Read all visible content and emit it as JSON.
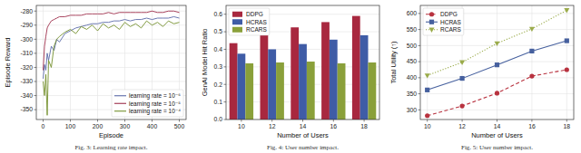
{
  "chart_data": [
    {
      "type": "line",
      "x_label": "Episode",
      "y_label": "Episode Reward",
      "annotations": [
        "Fig. 3: Learning rate impact."
      ],
      "x": [
        0,
        5,
        10,
        15,
        20,
        30,
        40,
        50,
        60,
        80,
        100,
        120,
        140,
        160,
        180,
        200,
        220,
        240,
        260,
        280,
        300,
        320,
        340,
        360,
        380,
        400,
        420,
        440,
        460,
        480,
        500
      ],
      "series": [
        {
          "name": "learning rate = 10⁻⁶",
          "color": "#5a6aa8",
          "line_style": "solid",
          "values": [
            -328,
            -318,
            -322,
            -310,
            -315,
            -305,
            -308,
            -300,
            -302,
            -296,
            -294,
            -292,
            -291,
            -290,
            -289,
            -289,
            -288,
            -288,
            -287,
            -287,
            -286,
            -287,
            -286,
            -286,
            -285,
            -286,
            -285,
            -285,
            -285,
            -284,
            -285
          ]
        },
        {
          "name": "learning rate = 10⁻⁵",
          "color": "#9e2f4c",
          "line_style": "solid",
          "values": [
            -322,
            -305,
            -298,
            -292,
            -290,
            -287,
            -286,
            -285,
            -284,
            -284,
            -283,
            -283,
            -283,
            -282,
            -282,
            -282,
            -282,
            -281,
            -282,
            -281,
            -281,
            -281,
            -281,
            -281,
            -281,
            -280,
            -281,
            -281,
            -280,
            -280,
            -281
          ]
        },
        {
          "name": "learning rate = 10⁻⁴",
          "color": "#74902c",
          "line_style": "solid",
          "values": [
            -330,
            -340,
            -325,
            -354,
            -315,
            -320,
            -305,
            -300,
            -298,
            -295,
            -293,
            -296,
            -291,
            -293,
            -290,
            -294,
            -289,
            -292,
            -290,
            -293,
            -288,
            -291,
            -289,
            -292,
            -287,
            -290,
            -288,
            -291,
            -287,
            -289,
            -288
          ]
        }
      ],
      "xlim": [
        -25,
        525
      ],
      "xticks": [
        0,
        100,
        200,
        300,
        400,
        500
      ],
      "ylim": [
        -357,
        -276
      ],
      "yticks": [
        -350,
        -340,
        -330,
        -320,
        -310,
        -300,
        -290,
        -280
      ],
      "grid": true,
      "legend": "lower right"
    },
    {
      "type": "bar",
      "x_label": "Number of Users",
      "y_label": "GenAI Model Hit Ratio",
      "annotations": [
        "Fig. 4: User number impact."
      ],
      "categories": [
        "10",
        "12",
        "14",
        "16",
        "18"
      ],
      "series": [
        {
          "name": "DDPG",
          "color": "#a8283f",
          "values": [
            0.435,
            0.48,
            0.525,
            0.555,
            0.59
          ]
        },
        {
          "name": "HCRAS",
          "color": "#3f5ca6",
          "values": [
            0.375,
            0.4,
            0.43,
            0.455,
            0.48
          ]
        },
        {
          "name": "RCARS",
          "color": "#8aa03a",
          "values": [
            0.32,
            0.325,
            0.33,
            0.32,
            0.325
          ]
        }
      ],
      "ylim": [
        0,
        0.65
      ],
      "yticks": [
        {
          "value": 0,
          "label": "0.0"
        },
        0.1,
        0.2,
        0.3,
        0.4,
        0.5,
        0.6
      ],
      "grid": true,
      "legend": "upper left"
    },
    {
      "type": "line",
      "x_label": "Number of Users",
      "y_label": "Total Utility (↑)",
      "annotations": [
        "Fig. 5: User number impact."
      ],
      "x": [
        10,
        12,
        14,
        16,
        18
      ],
      "series": [
        {
          "name": "DDPG",
          "color": "#b8323f",
          "line_style": "dashed",
          "marker": "circle",
          "values": [
            282,
            312,
            352,
            405,
            425
          ]
        },
        {
          "name": "HCRAS",
          "color": "#46609e",
          "line_style": "solid",
          "marker": "square",
          "values": [
            362,
            398,
            440,
            483,
            515
          ]
        },
        {
          "name": "RCARS",
          "color": "#9aab4a",
          "line_style": "dotted",
          "marker": "triangle-down",
          "values": [
            407,
            448,
            507,
            552,
            610
          ]
        }
      ],
      "xlim": [
        9.6,
        18.4
      ],
      "xticks": [
        10,
        12,
        14,
        16,
        18
      ],
      "ylim": [
        270,
        625
      ],
      "yticks": [
        300,
        350,
        400,
        450,
        500,
        550,
        600
      ],
      "grid": true,
      "legend": "upper left"
    }
  ]
}
